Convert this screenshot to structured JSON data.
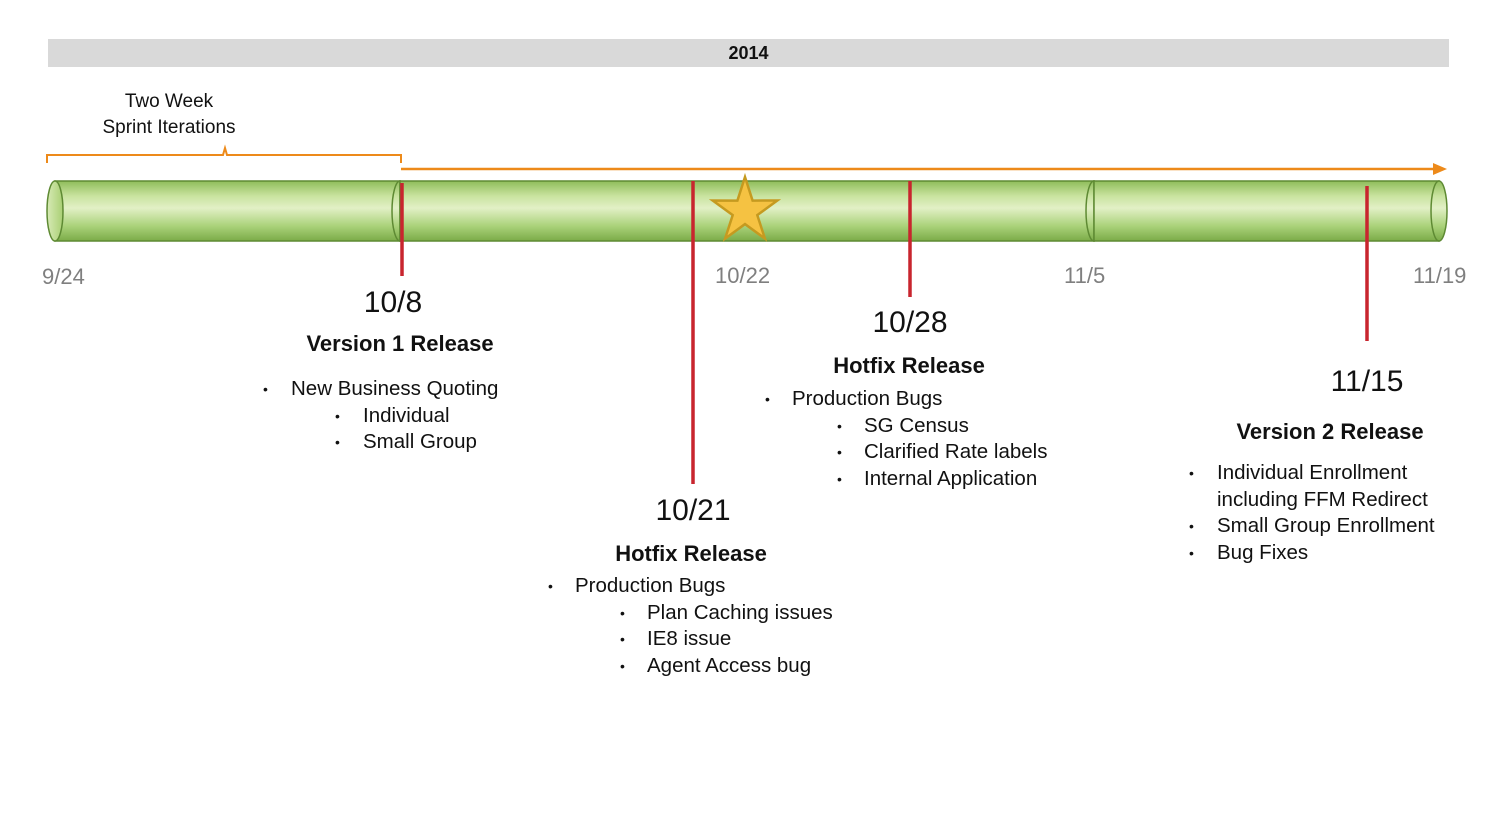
{
  "year": "2014",
  "sprint": {
    "line1": "Two Week",
    "line2": "Sprint Iterations"
  },
  "axis_ticks": [
    "9/24",
    "10/22",
    "11/5",
    "11/19"
  ],
  "bullet_char": "•",
  "milestones": [
    {
      "date": "10/8",
      "title": "Version 1 Release",
      "items": [
        {
          "text": "New Business Quoting",
          "level": 1
        },
        {
          "text": "Individual",
          "level": 2
        },
        {
          "text": "Small Group",
          "level": 2
        }
      ]
    },
    {
      "date": "10/21",
      "title": "Hotfix Release",
      "items": [
        {
          "text": "Production Bugs",
          "level": 1
        },
        {
          "text": "Plan Caching issues",
          "level": 2
        },
        {
          "text": "IE8 issue",
          "level": 2
        },
        {
          "text": "Agent Access bug",
          "level": 2
        }
      ]
    },
    {
      "date": "10/28",
      "title": "Hotfix Release",
      "items": [
        {
          "text": "Production Bugs",
          "level": 1
        },
        {
          "text": "SG Census",
          "level": 2
        },
        {
          "text": "Clarified Rate labels",
          "level": 2
        },
        {
          "text": "Internal Application",
          "level": 2
        }
      ]
    },
    {
      "date": "11/15",
      "title": "Version 2 Release",
      "items": [
        {
          "text": "Individual Enrollment",
          "level": 1
        },
        {
          "text": "including FFM Redirect",
          "level": 1,
          "continuation": true
        },
        {
          "text": "Small Group Enrollment",
          "level": 1
        },
        {
          "text": "Bug Fixes",
          "level": 1
        }
      ]
    }
  ],
  "colors": {
    "tube_light": "#e2f0c6",
    "tube_mid": "#a9cf74",
    "tube_dark": "#77a644",
    "tube_outline": "#5e8a33",
    "arrow": "#ed8a1a",
    "marker": "#c8252e",
    "star_fill": "#f5c242",
    "star_stroke": "#c59a20",
    "tick_text": "#7f7f7f",
    "year_bar": "#d9d9d9"
  }
}
